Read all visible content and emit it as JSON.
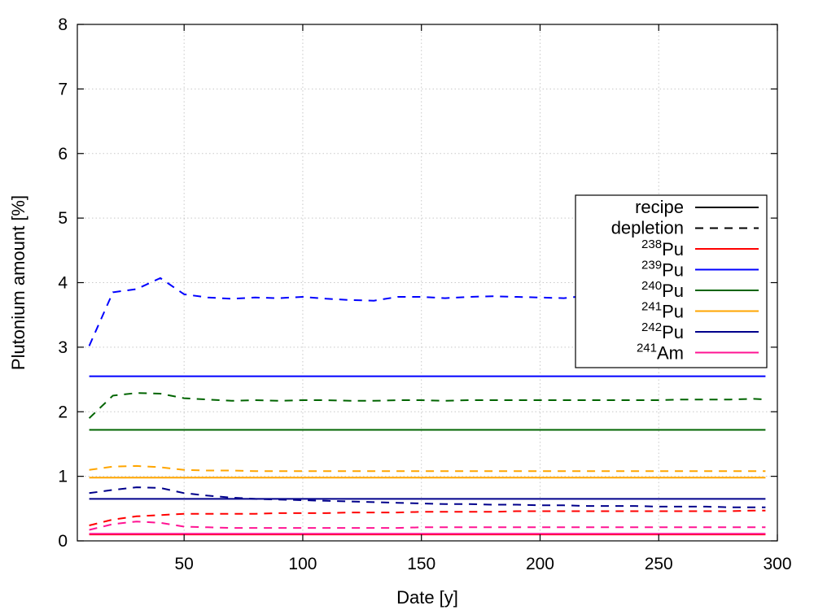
{
  "chart_data": {
    "type": "line",
    "title": "",
    "xlabel": "Date [y]",
    "ylabel": "Plutonium amount [%]",
    "xlim": [
      5,
      300
    ],
    "ylim": [
      0,
      8
    ],
    "xticks": [
      50,
      100,
      150,
      200,
      250,
      300
    ],
    "yticks": [
      0,
      1,
      2,
      3,
      4,
      5,
      6,
      7,
      8
    ],
    "grid": true,
    "legend_position": "right",
    "legend_style": [
      {
        "label": "recipe",
        "dash": "solid",
        "color": "#000000"
      },
      {
        "label": "depletion",
        "dash": "dashed",
        "color": "#000000"
      }
    ],
    "legend_isotopes": [
      {
        "sup": "238",
        "base": "Pu",
        "color": "#ff0000"
      },
      {
        "sup": "239",
        "base": "Pu",
        "color": "#0000ff"
      },
      {
        "sup": "240",
        "base": "Pu",
        "color": "#006400"
      },
      {
        "sup": "241",
        "base": "Pu",
        "color": "#ffa500"
      },
      {
        "sup": "242",
        "base": "Pu",
        "color": "#00008b"
      },
      {
        "sup": "241",
        "base": "Am",
        "color": "#ff1493"
      }
    ],
    "x": [
      10,
      20,
      30,
      40,
      50,
      60,
      70,
      80,
      90,
      100,
      110,
      120,
      130,
      140,
      150,
      160,
      170,
      180,
      190,
      200,
      210,
      220,
      230,
      240,
      250,
      260,
      270,
      280,
      290,
      295
    ],
    "recipe": [
      {
        "isotope": "238Pu",
        "color": "#ff0000",
        "x": [
          10,
          295
        ],
        "y": [
          0.1,
          0.1
        ]
      },
      {
        "isotope": "239Pu",
        "color": "#0000ff",
        "x": [
          10,
          295
        ],
        "y": [
          2.55,
          2.55
        ]
      },
      {
        "isotope": "240Pu",
        "color": "#006400",
        "x": [
          10,
          295
        ],
        "y": [
          1.72,
          1.72
        ]
      },
      {
        "isotope": "241Pu",
        "color": "#ffa500",
        "x": [
          10,
          295
        ],
        "y": [
          0.98,
          0.98
        ]
      },
      {
        "isotope": "242Pu",
        "color": "#00008b",
        "x": [
          10,
          295
        ],
        "y": [
          0.65,
          0.65
        ]
      },
      {
        "isotope": "241Am",
        "color": "#ff1493",
        "x": [
          10,
          295
        ],
        "y": [
          0.11,
          0.11
        ]
      }
    ],
    "depletion": [
      {
        "isotope": "238Pu",
        "color": "#ff0000",
        "y": [
          0.24,
          0.33,
          0.38,
          0.4,
          0.42,
          0.42,
          0.42,
          0.42,
          0.43,
          0.43,
          0.43,
          0.44,
          0.44,
          0.44,
          0.45,
          0.45,
          0.45,
          0.45,
          0.46,
          0.46,
          0.46,
          0.46,
          0.46,
          0.46,
          0.46,
          0.46,
          0.46,
          0.46,
          0.47,
          0.47
        ]
      },
      {
        "isotope": "239Pu",
        "color": "#0000ff",
        "y": [
          3.02,
          3.85,
          3.9,
          4.07,
          3.82,
          3.77,
          3.75,
          3.77,
          3.76,
          3.78,
          3.75,
          3.73,
          3.72,
          3.78,
          3.78,
          3.76,
          3.78,
          3.79,
          3.78,
          3.77,
          3.76,
          3.8,
          3.78,
          3.76,
          3.78,
          3.79,
          3.8,
          3.8,
          3.8,
          3.82
        ]
      },
      {
        "isotope": "240Pu",
        "color": "#006400",
        "y": [
          1.9,
          2.25,
          2.29,
          2.28,
          2.21,
          2.19,
          2.17,
          2.18,
          2.17,
          2.18,
          2.18,
          2.17,
          2.17,
          2.18,
          2.18,
          2.17,
          2.18,
          2.18,
          2.18,
          2.18,
          2.18,
          2.18,
          2.18,
          2.18,
          2.18,
          2.19,
          2.19,
          2.19,
          2.2,
          2.19
        ]
      },
      {
        "isotope": "241Pu",
        "color": "#ffa500",
        "y": [
          1.1,
          1.15,
          1.16,
          1.14,
          1.1,
          1.09,
          1.09,
          1.08,
          1.08,
          1.08,
          1.08,
          1.08,
          1.08,
          1.08,
          1.08,
          1.08,
          1.08,
          1.08,
          1.08,
          1.08,
          1.08,
          1.08,
          1.08,
          1.08,
          1.08,
          1.08,
          1.08,
          1.08,
          1.08,
          1.08
        ]
      },
      {
        "isotope": "242Pu",
        "color": "#00008b",
        "y": [
          0.74,
          0.79,
          0.83,
          0.82,
          0.74,
          0.7,
          0.67,
          0.65,
          0.64,
          0.63,
          0.62,
          0.61,
          0.6,
          0.59,
          0.58,
          0.57,
          0.57,
          0.56,
          0.56,
          0.55,
          0.55,
          0.54,
          0.54,
          0.54,
          0.53,
          0.53,
          0.53,
          0.52,
          0.52,
          0.52
        ]
      },
      {
        "isotope": "241Am",
        "color": "#ff1493",
        "y": [
          0.17,
          0.26,
          0.3,
          0.28,
          0.22,
          0.21,
          0.2,
          0.2,
          0.2,
          0.2,
          0.2,
          0.2,
          0.2,
          0.2,
          0.21,
          0.21,
          0.21,
          0.21,
          0.21,
          0.21,
          0.21,
          0.21,
          0.21,
          0.21,
          0.21,
          0.21,
          0.21,
          0.21,
          0.21,
          0.21
        ]
      }
    ]
  }
}
